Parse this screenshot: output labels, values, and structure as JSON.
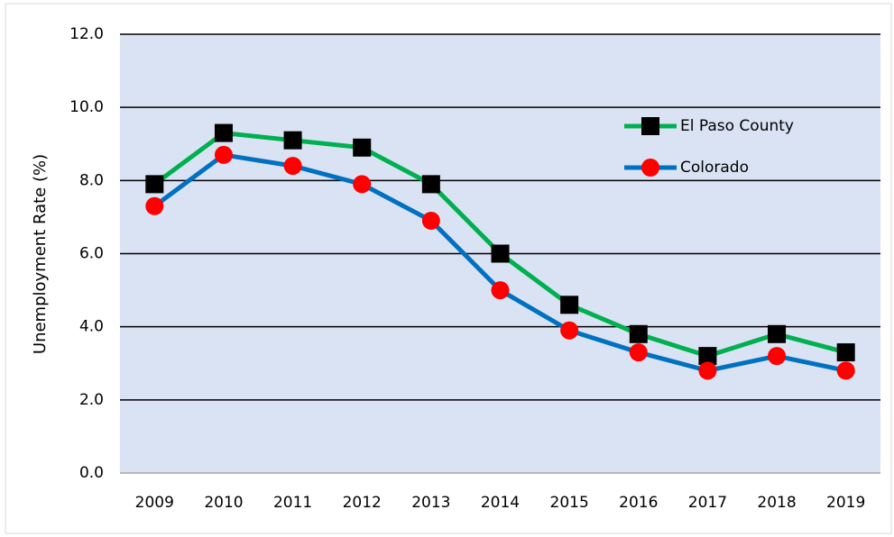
{
  "chart_data": {
    "type": "line",
    "y_axis_label": "Unemployment Rate (%)",
    "categories": [
      "2009",
      "2010",
      "2011",
      "2012",
      "2013",
      "2014",
      "2015",
      "2016",
      "2017",
      "2018",
      "2019"
    ],
    "series": [
      {
        "name": "El Paso County",
        "color": "#00b050",
        "marker": "square",
        "marker_color": "#000000",
        "values": [
          7.9,
          9.3,
          9.1,
          8.9,
          7.9,
          6.0,
          4.6,
          3.8,
          3.2,
          3.8,
          3.3
        ]
      },
      {
        "name": "Colorado",
        "color": "#0070c0",
        "marker": "circle",
        "marker_color": "#ff0000",
        "values": [
          7.3,
          8.7,
          8.4,
          7.9,
          6.9,
          5.0,
          3.9,
          3.3,
          2.8,
          3.2,
          2.8
        ]
      }
    ],
    "ylim": [
      0,
      12
    ],
    "yticks": [
      {
        "value": 0,
        "label": "0.0"
      },
      {
        "value": 2,
        "label": "2.0"
      },
      {
        "value": 4,
        "label": "4.0"
      },
      {
        "value": 6,
        "label": "6.0"
      },
      {
        "value": 8,
        "label": "8.0"
      },
      {
        "value": 10,
        "label": "10.0"
      },
      {
        "value": 12,
        "label": "12.0"
      }
    ],
    "grid": true,
    "plot_background": "#dae3f3",
    "legend": "upper right"
  }
}
